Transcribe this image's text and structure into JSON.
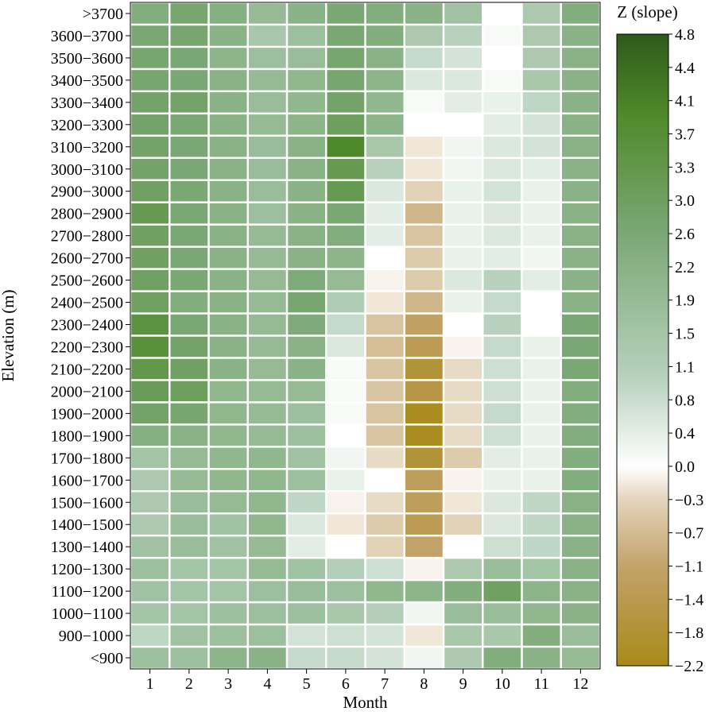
{
  "chart_data": {
    "type": "heatmap",
    "title": "",
    "xlabel": "Month",
    "ylabel": "Elevation (m)",
    "x_categories": [
      "1",
      "2",
      "3",
      "4",
      "5",
      "6",
      "7",
      "8",
      "9",
      "10",
      "11",
      "12"
    ],
    "y_categories": [
      ">3700",
      "3600−3700",
      "3500−3600",
      "3400−3500",
      "3300−3400",
      "3200−3300",
      "3100−3200",
      "3000−3100",
      "2900−3000",
      "2800−2900",
      "2700−2800",
      "2600−2700",
      "2500−2600",
      "2400−2500",
      "2300−2400",
      "2200−2300",
      "2100−2200",
      "2000−2100",
      "1900−2000",
      "1800−1900",
      "1700−1800",
      "1600−1700",
      "1500−1600",
      "1400−1500",
      "1300−1400",
      "1200−1300",
      "1100−1200",
      "1000−1100",
      "900−1000",
      "<900"
    ],
    "values": [
      [
        2.4,
        2.7,
        2.3,
        1.9,
        2.2,
        2.6,
        2.4,
        2.2,
        1.6,
        0.0,
        1.3,
        2.4
      ],
      [
        2.6,
        2.7,
        2.2,
        1.4,
        1.7,
        2.6,
        2.4,
        1.3,
        1.0,
        0.1,
        1.3,
        2.2
      ],
      [
        2.7,
        2.6,
        2.1,
        1.7,
        1.8,
        2.7,
        2.2,
        0.8,
        0.6,
        0.0,
        1.3,
        2.2
      ],
      [
        2.7,
        2.6,
        2.2,
        1.9,
        2.0,
        2.7,
        2.1,
        0.5,
        0.5,
        0.1,
        1.4,
        2.2
      ],
      [
        2.8,
        2.8,
        2.2,
        1.8,
        2.0,
        2.8,
        2.0,
        0.1,
        0.4,
        0.3,
        0.9,
        2.2
      ],
      [
        2.8,
        2.6,
        2.2,
        1.9,
        2.1,
        3.0,
        2.1,
        0.0,
        0.0,
        0.4,
        0.6,
        2.2
      ],
      [
        2.8,
        2.6,
        2.2,
        1.8,
        2.2,
        3.9,
        1.4,
        -0.2,
        0.2,
        0.5,
        0.6,
        2.2
      ],
      [
        2.8,
        2.6,
        2.2,
        1.8,
        2.2,
        3.2,
        1.0,
        -0.2,
        0.2,
        0.5,
        0.4,
        2.2
      ],
      [
        2.9,
        2.6,
        2.2,
        1.8,
        2.2,
        3.2,
        0.5,
        -0.4,
        0.3,
        0.6,
        0.3,
        2.2
      ],
      [
        3.2,
        2.6,
        2.2,
        1.7,
        2.2,
        2.6,
        0.4,
        -0.8,
        0.3,
        0.5,
        0.3,
        2.2
      ],
      [
        2.9,
        2.6,
        2.2,
        1.9,
        2.2,
        2.4,
        0.4,
        -0.6,
        0.3,
        0.5,
        0.3,
        2.2
      ],
      [
        2.9,
        2.6,
        2.2,
        1.9,
        2.2,
        2.1,
        0.0,
        -0.5,
        0.3,
        0.4,
        0.2,
        2.2
      ],
      [
        2.9,
        2.6,
        2.2,
        1.9,
        2.5,
        1.9,
        -0.1,
        -0.5,
        0.5,
        1.0,
        0.4,
        2.2
      ],
      [
        2.9,
        2.4,
        2.2,
        1.9,
        2.7,
        1.2,
        -0.2,
        -0.8,
        0.3,
        0.8,
        0.0,
        2.2
      ],
      [
        3.5,
        2.6,
        2.2,
        1.9,
        2.5,
        0.8,
        -0.6,
        -1.2,
        0.0,
        1.0,
        0.0,
        2.6
      ],
      [
        3.6,
        2.8,
        2.2,
        1.9,
        2.2,
        0.5,
        -0.7,
        -1.4,
        -0.1,
        0.8,
        0.3,
        2.6
      ],
      [
        3.3,
        2.9,
        2.2,
        1.9,
        2.2,
        0.1,
        -0.6,
        -1.8,
        -0.3,
        0.7,
        0.3,
        2.6
      ],
      [
        3.1,
        3.0,
        2.0,
        1.9,
        1.9,
        0.1,
        -0.6,
        -1.6,
        -0.3,
        0.7,
        0.3,
        2.4
      ],
      [
        2.8,
        2.7,
        2.0,
        1.9,
        1.7,
        0.1,
        -0.6,
        -2.1,
        -0.3,
        0.8,
        0.3,
        2.4
      ],
      [
        2.3,
        2.2,
        2.0,
        1.9,
        1.7,
        0.0,
        -0.6,
        -2.1,
        -0.3,
        0.7,
        0.3,
        2.4
      ],
      [
        1.5,
        1.9,
        2.0,
        2.0,
        1.6,
        0.2,
        -0.3,
        -1.8,
        -0.5,
        0.4,
        0.3,
        2.4
      ],
      [
        1.3,
        1.9,
        2.0,
        2.0,
        1.7,
        0.3,
        0.0,
        -1.3,
        -0.1,
        0.3,
        0.3,
        2.4
      ],
      [
        1.3,
        1.8,
        1.9,
        2.0,
        0.9,
        -0.1,
        -0.3,
        -1.3,
        -0.2,
        0.5,
        0.9,
        2.2
      ],
      [
        1.3,
        1.8,
        1.6,
        2.0,
        0.5,
        -0.2,
        -0.5,
        -1.4,
        -0.4,
        0.5,
        0.9,
        2.2
      ],
      [
        1.6,
        1.8,
        1.6,
        1.9,
        0.4,
        0.0,
        -0.4,
        -1.1,
        0.0,
        0.7,
        0.9,
        2.2
      ],
      [
        1.7,
        1.5,
        1.5,
        1.9,
        1.6,
        1.1,
        0.7,
        -0.1,
        1.3,
        1.8,
        1.5,
        2.2
      ],
      [
        1.6,
        1.5,
        1.5,
        1.7,
        1.8,
        1.7,
        2.0,
        2.1,
        2.4,
        2.9,
        2.1,
        2.2
      ],
      [
        1.5,
        1.5,
        1.7,
        1.7,
        1.7,
        1.4,
        1.1,
        0.2,
        1.8,
        1.8,
        2.0,
        2.2
      ],
      [
        0.9,
        1.6,
        1.7,
        1.7,
        0.6,
        0.7,
        0.6,
        -0.2,
        1.4,
        1.4,
        2.4,
        1.8
      ],
      [
        1.7,
        1.7,
        2.1,
        2.2,
        0.8,
        0.8,
        0.6,
        0.2,
        1.3,
        2.4,
        2.2,
        1.9
      ]
    ],
    "colorbar": {
      "label": "Z (slope)",
      "min": -2.2,
      "max": 4.8,
      "tick_labels": [
        "4.8",
        "4.4",
        "4.1",
        "3.7",
        "3.3",
        "3.0",
        "2.6",
        "2.2",
        "1.9",
        "1.5",
        "1.1",
        "0.8",
        "0.4",
        "0.0",
        "−0.3",
        "−0.7",
        "−1.1",
        "−1.4",
        "−1.8",
        "−2.2"
      ],
      "colors": {
        "max": "#2e5a1c",
        "high": "#4f8a2a",
        "mid_high": "#7aa874",
        "low_green": "#b7d1bd",
        "zero": "#ffffff",
        "low_neg": "#e4d5bd",
        "mid_neg": "#c3a26a",
        "min": "#a88a1a"
      }
    },
    "grid": false,
    "legend": "colorbar-right"
  }
}
